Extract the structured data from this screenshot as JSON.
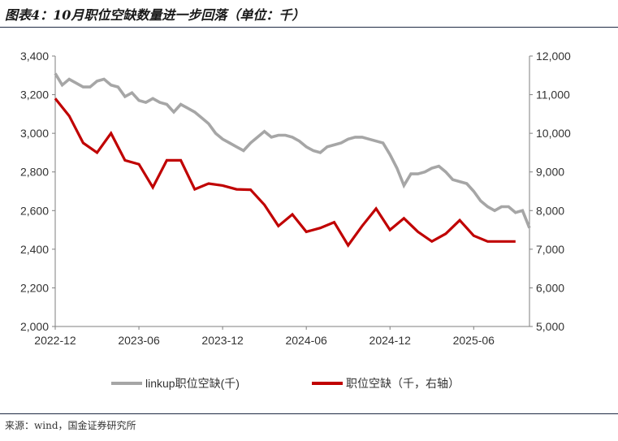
{
  "title": "图表4：10月职位空缺数量进一步回落（单位：千）",
  "source": "来源：wind，国金证券研究所",
  "chart_data": {
    "type": "line",
    "left_axis": {
      "ylim": [
        2000,
        3400
      ],
      "ticks": [
        "2,000",
        "2,200",
        "2,400",
        "2,600",
        "2,800",
        "3,000",
        "3,200",
        "3,400"
      ]
    },
    "right_axis": {
      "ylim": [
        5000,
        12000
      ],
      "ticks": [
        "5,000",
        "6,000",
        "7,000",
        "8,000",
        "9,000",
        "10,000",
        "11,000",
        "12,000"
      ]
    },
    "x_ticks": [
      "2022-12",
      "2023-06",
      "2023-12",
      "2024-06",
      "2024-12",
      "2025-06"
    ],
    "x_range": [
      0,
      34
    ],
    "legend": {
      "position": "bottom"
    },
    "series": [
      {
        "name": "linkup职位空缺(千)",
        "axis": "left",
        "color": "#a6a6a6",
        "x": [
          0,
          0.5,
          1,
          1.5,
          2,
          2.5,
          3,
          3.5,
          4,
          4.5,
          5,
          5.5,
          6,
          6.5,
          7,
          7.5,
          8,
          8.5,
          9,
          9.5,
          10,
          10.5,
          11,
          11.5,
          12,
          12.5,
          13,
          13.5,
          14,
          14.5,
          15,
          15.5,
          16,
          16.5,
          17,
          17.5,
          18,
          18.5,
          19,
          19.5,
          20,
          20.5,
          21,
          21.5,
          22,
          22.5,
          23,
          23.5,
          24,
          24.5,
          25,
          25.5,
          26,
          26.5,
          27,
          27.5,
          28,
          28.5,
          29,
          29.5,
          30,
          30.5,
          31,
          31.5,
          32,
          32.5,
          33,
          33.5,
          34
        ],
        "values": [
          3310,
          3250,
          3280,
          3260,
          3240,
          3240,
          3270,
          3280,
          3250,
          3240,
          3190,
          3210,
          3170,
          3160,
          3180,
          3160,
          3150,
          3110,
          3150,
          3130,
          3110,
          3080,
          3050,
          3000,
          2970,
          2950,
          2930,
          2910,
          2950,
          2980,
          3010,
          2980,
          2990,
          2990,
          2980,
          2960,
          2930,
          2910,
          2900,
          2930,
          2940,
          2950,
          2970,
          2980,
          2980,
          2970,
          2960,
          2950,
          2890,
          2820,
          2730,
          2790,
          2790,
          2800,
          2820,
          2830,
          2800,
          2760,
          2750,
          2740,
          2700,
          2650,
          2620,
          2600,
          2620,
          2620,
          2590,
          2600,
          2510
        ]
      },
      {
        "name": "职位空缺（千，右轴）",
        "axis": "right",
        "color": "#c00000",
        "x": [
          0,
          1,
          2,
          3,
          4,
          5,
          6,
          7,
          8,
          9,
          10,
          11,
          12,
          13,
          14,
          15,
          16,
          17,
          18,
          19,
          20,
          21,
          22,
          23,
          24,
          25,
          26,
          27,
          28,
          29,
          30,
          31,
          32,
          33
        ],
        "values": [
          10900,
          10450,
          9750,
          9500,
          10000,
          9300,
          9200,
          8600,
          9300,
          9300,
          8550,
          8700,
          8650,
          8550,
          8540,
          8150,
          7600,
          7900,
          7450,
          7550,
          7700,
          7100,
          7600,
          8050,
          7500,
          7800,
          7450,
          7200,
          7400,
          7750,
          7350,
          7200,
          7200,
          7200
        ]
      }
    ]
  }
}
